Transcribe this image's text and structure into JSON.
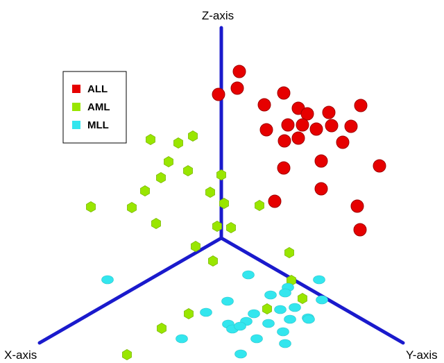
{
  "chart_data": {
    "type": "scatter",
    "projection": "3d",
    "title": "",
    "axis_labels": {
      "x": "X-axis",
      "y": "Y-axis",
      "z": "Z-axis"
    },
    "grid": false,
    "legend_position": "top-left",
    "colors": {
      "axis": "#1a1acc"
    },
    "series": [
      {
        "name": "ALL",
        "color": "#e60000",
        "marker": "sphere",
        "points": [
          [
            345,
            103
          ],
          [
            342,
            127
          ],
          [
            315,
            136
          ],
          [
            409,
            134
          ],
          [
            381,
            151
          ],
          [
            430,
            156
          ],
          [
            520,
            152
          ],
          [
            443,
            164
          ],
          [
            474,
            162
          ],
          [
            384,
            187
          ],
          [
            415,
            180
          ],
          [
            436,
            180
          ],
          [
            456,
            186
          ],
          [
            478,
            181
          ],
          [
            506,
            182
          ],
          [
            410,
            203
          ],
          [
            430,
            199
          ],
          [
            494,
            205
          ],
          [
            409,
            242
          ],
          [
            463,
            232
          ],
          [
            547,
            239
          ],
          [
            463,
            272
          ],
          [
            396,
            290
          ],
          [
            515,
            297
          ],
          [
            519,
            331
          ]
        ]
      },
      {
        "name": "AML",
        "color": "#99e600",
        "marker": "cube",
        "points": [
          [
            278,
            196
          ],
          [
            257,
            206
          ],
          [
            217,
            201
          ],
          [
            243,
            233
          ],
          [
            271,
            246
          ],
          [
            232,
            256
          ],
          [
            319,
            252
          ],
          [
            209,
            275
          ],
          [
            303,
            277
          ],
          [
            190,
            299
          ],
          [
            131,
            298
          ],
          [
            323,
            293
          ],
          [
            374,
            296
          ],
          [
            225,
            322
          ],
          [
            313,
            326
          ],
          [
            333,
            328
          ],
          [
            282,
            355
          ],
          [
            307,
            376
          ],
          [
            417,
            364
          ],
          [
            420,
            404
          ],
          [
            436,
            430
          ],
          [
            385,
            445
          ],
          [
            272,
            452
          ],
          [
            233,
            473
          ],
          [
            183,
            511
          ]
        ]
      },
      {
        "name": "MLL",
        "color": "#33e6ee",
        "marker": "ellipsoid",
        "points": [
          [
            155,
            403
          ],
          [
            358,
            396
          ],
          [
            460,
            403
          ],
          [
            415,
            414
          ],
          [
            390,
            425
          ],
          [
            411,
            422
          ],
          [
            464,
            432
          ],
          [
            328,
            434
          ],
          [
            425,
            443
          ],
          [
            404,
            446
          ],
          [
            297,
            450
          ],
          [
            366,
            452
          ],
          [
            418,
            460
          ],
          [
            444,
            458
          ],
          [
            329,
            467
          ],
          [
            355,
            463
          ],
          [
            387,
            466
          ],
          [
            335,
            474
          ],
          [
            346,
            470
          ],
          [
            445,
            460
          ],
          [
            370,
            488
          ],
          [
            411,
            495
          ],
          [
            262,
            488
          ],
          [
            347,
            510
          ],
          [
            408,
            478
          ]
        ]
      }
    ]
  }
}
